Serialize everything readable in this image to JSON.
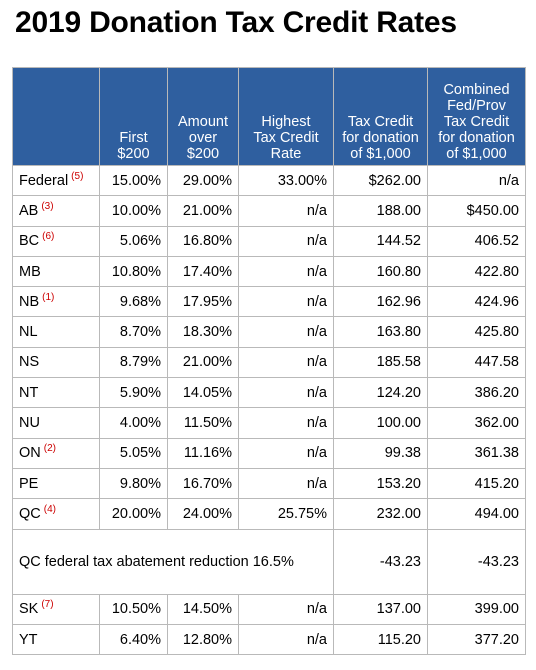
{
  "title": "2019 Donation Tax Credit Rates",
  "headers": [
    [
      ""
    ],
    [
      "First",
      "$200"
    ],
    [
      "Amount",
      "over",
      "$200"
    ],
    [
      "Highest",
      "Tax Credit",
      "Rate"
    ],
    [
      "Tax Credit",
      "for donation",
      "of $1,000"
    ],
    [
      "Combined",
      "Fed/Prov",
      "Tax Credit",
      "for donation",
      "of $1,000"
    ]
  ],
  "rows_top": [
    {
      "prov": "Federal",
      "note": "(5)",
      "first": "15.00%",
      "over": "29.00%",
      "highest": "33.00%",
      "credit": "$262.00",
      "combined": "n/a"
    },
    {
      "prov": "AB",
      "note": "(3)",
      "first": "10.00%",
      "over": "21.00%",
      "highest": "n/a",
      "credit": "188.00",
      "combined": "$450.00"
    },
    {
      "prov": "BC",
      "note": "(6)",
      "first": "5.06%",
      "over": "16.80%",
      "highest": "n/a",
      "credit": "144.52",
      "combined": "406.52"
    },
    {
      "prov": "MB",
      "note": "",
      "first": "10.80%",
      "over": "17.40%",
      "highest": "n/a",
      "credit": "160.80",
      "combined": "422.80"
    },
    {
      "prov": "NB",
      "note": "(1)",
      "first": "9.68%",
      "over": "17.95%",
      "highest": "n/a",
      "credit": "162.96",
      "combined": "424.96"
    },
    {
      "prov": "NL",
      "note": "",
      "first": "8.70%",
      "over": "18.30%",
      "highest": "n/a",
      "credit": "163.80",
      "combined": "425.80"
    },
    {
      "prov": "NS",
      "note": "",
      "first": "8.79%",
      "over": "21.00%",
      "highest": "n/a",
      "credit": "185.58",
      "combined": "447.58"
    },
    {
      "prov": "NT",
      "note": "",
      "first": "5.90%",
      "over": "14.05%",
      "highest": "n/a",
      "credit": "124.20",
      "combined": "386.20"
    },
    {
      "prov": "NU",
      "note": "",
      "first": "4.00%",
      "over": "11.50%",
      "highest": "n/a",
      "credit": "100.00",
      "combined": "362.00"
    },
    {
      "prov": "ON",
      "note": "(2)",
      "first": "5.05%",
      "over": "11.16%",
      "highest": "n/a",
      "credit": "99.38",
      "combined": "361.38"
    },
    {
      "prov": "PE",
      "note": "",
      "first": "9.80%",
      "over": "16.70%",
      "highest": "n/a",
      "credit": "153.20",
      "combined": "415.20"
    },
    {
      "prov": "QC",
      "note": "(4)",
      "first": "20.00%",
      "over": "24.00%",
      "highest": "25.75%",
      "credit": "232.00",
      "combined": "494.00"
    }
  ],
  "abatement": {
    "label": "QC federal tax abatement reduction 16.5%",
    "credit": "-43.23",
    "combined": "-43.23"
  },
  "rows_bottom": [
    {
      "prov": "SK",
      "note": "(7)",
      "first": "10.50%",
      "over": "14.50%",
      "highest": "n/a",
      "credit": "137.00",
      "combined": "399.00"
    },
    {
      "prov": "YT",
      "note": "",
      "first": "6.40%",
      "over": "12.80%",
      "highest": "n/a",
      "credit": "115.20",
      "combined": "377.20"
    }
  ],
  "colors": {
    "header_bg": "#2f5f9f",
    "header_text": "#ffffff",
    "note": "#cc0000",
    "border": "#b9b9b9"
  }
}
